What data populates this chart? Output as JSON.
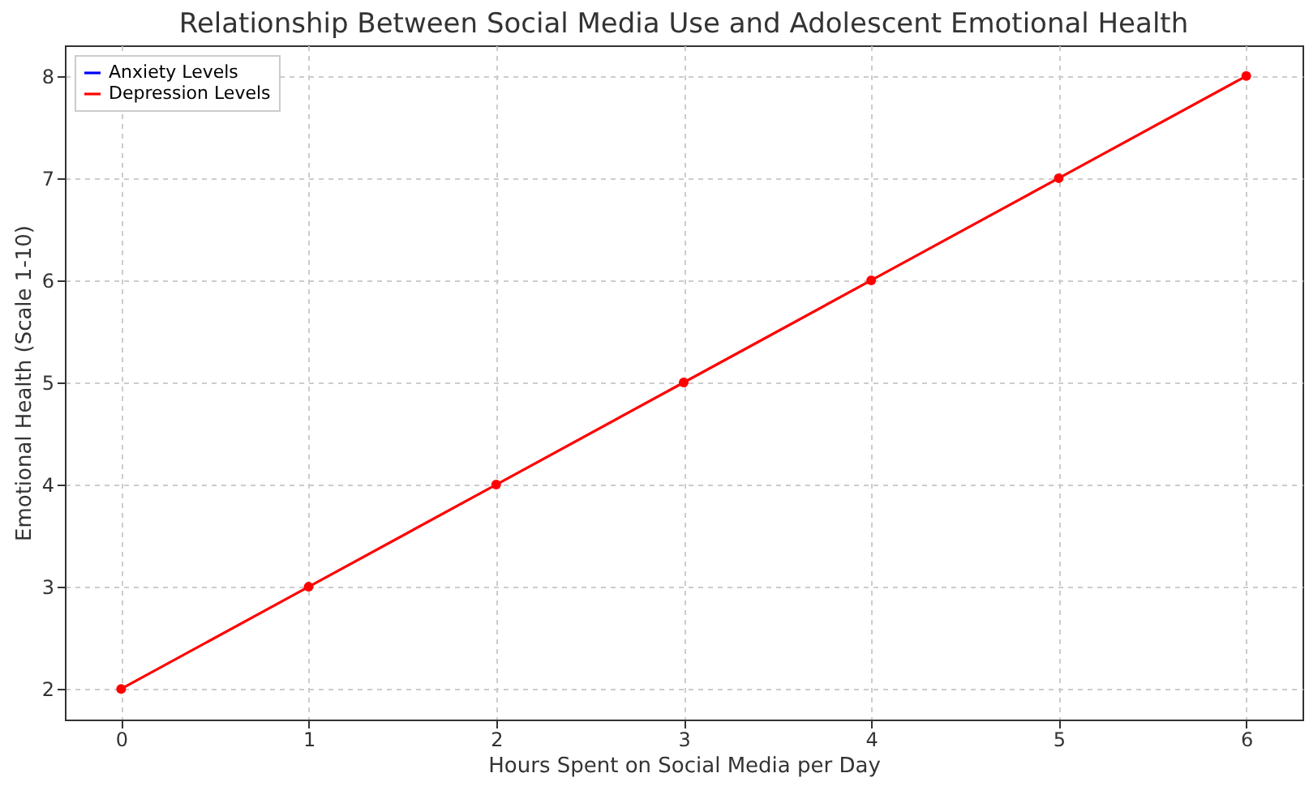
{
  "chart_data": {
    "type": "line",
    "title": "Relationship Between Social Media Use and Adolescent Emotional Health",
    "xlabel": "Hours Spent on Social Media per Day",
    "ylabel": "Emotional Health (Scale 1-10)",
    "x": [
      0,
      1,
      2,
      3,
      4,
      5,
      6
    ],
    "series": [
      {
        "name": "Anxiety Levels",
        "color": "#0000ff",
        "values": [
          null,
          null,
          null,
          null,
          null,
          null,
          null
        ]
      },
      {
        "name": "Depression Levels",
        "color": "#ff0000",
        "values": [
          2,
          3,
          4,
          5,
          6,
          7,
          8
        ]
      }
    ],
    "xlim": [
      -0.3,
      6.3
    ],
    "ylim": [
      1.7,
      8.3
    ],
    "xticks": [
      0,
      1,
      2,
      3,
      4,
      5,
      6
    ],
    "yticks": [
      2,
      3,
      4,
      5,
      6,
      7,
      8
    ],
    "grid": true,
    "legend": "top left",
    "marker": "circle",
    "line_style": "solid"
  }
}
